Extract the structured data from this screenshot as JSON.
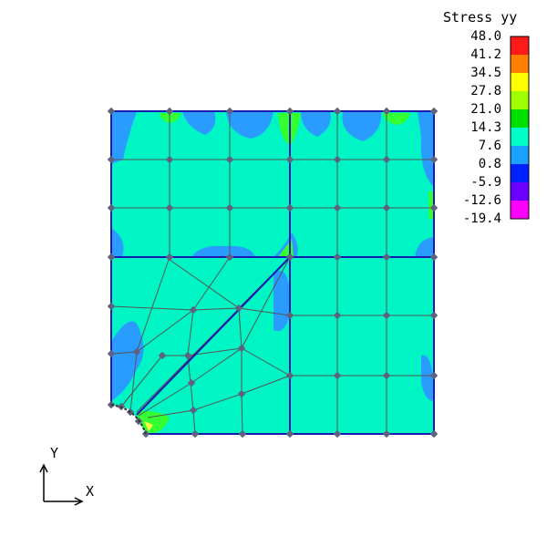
{
  "legend": {
    "title": "Stress yy",
    "values": [
      "48.0",
      "41.2",
      "34.5",
      "27.8",
      "21.0",
      "14.3",
      "7.6",
      "0.8",
      "-5.9",
      "-12.6",
      "-19.4"
    ],
    "colors": [
      "#ff1a1a",
      "#ff8000",
      "#ffff00",
      "#a0ff00",
      "#00e000",
      "#00ffc8",
      "#1aa0ff",
      "#0020ff",
      "#6a00ff",
      "#ff00ff"
    ]
  },
  "field_colors": {
    "base": "#00f5c4",
    "warm": "#33ff33",
    "cool": "#2a9cff",
    "mesh_line": "#555555",
    "node": "#606080",
    "boundary": "#1a1ab0"
  },
  "axes": {
    "y_label": "Y",
    "x_label": "X"
  }
}
